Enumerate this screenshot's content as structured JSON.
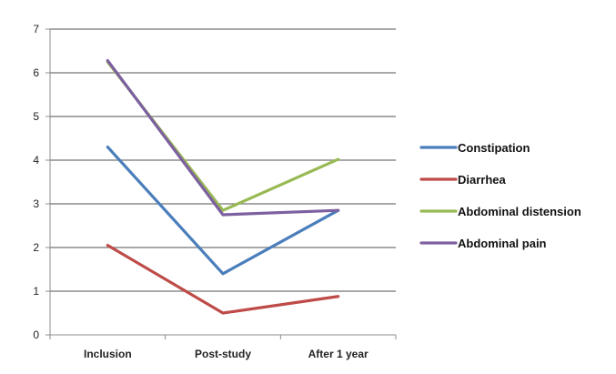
{
  "chart_data": {
    "type": "line",
    "categories": [
      "Inclusion",
      "Post-study",
      "After 1 year"
    ],
    "ylim": [
      0,
      7
    ],
    "yticks": [
      0,
      1,
      2,
      3,
      4,
      5,
      6,
      7
    ],
    "grid": true,
    "legend_position": "right",
    "series": [
      {
        "name": "Constipation",
        "values": [
          4.3,
          1.4,
          2.85
        ],
        "color": "#4A7EBB"
      },
      {
        "name": "Diarrhea",
        "values": [
          2.05,
          0.5,
          0.88
        ],
        "color": "#BE4B48"
      },
      {
        "name": "Abdominal distension",
        "values": [
          6.25,
          2.85,
          4.02
        ],
        "color": "#98B954"
      },
      {
        "name": "Abdominal pain",
        "values": [
          6.28,
          2.75,
          2.85
        ],
        "color": "#7D60A0"
      }
    ]
  }
}
